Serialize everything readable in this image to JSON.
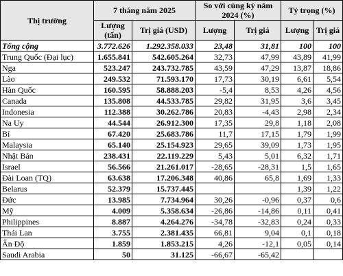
{
  "headers": {
    "market": "Thị trường",
    "period": "7 tháng năm 2025",
    "compare": "So với cùng kỳ năm 2024 (%)",
    "share": "Tỷ trọng (%)",
    "volume_unit": "Lượng (tấn)",
    "value_unit": "Trị giá (USD)",
    "volume": "Lượng",
    "value": "Trị giá"
  },
  "rows": [
    {
      "market": "Tổng cộng",
      "volume": "3.772.626",
      "value": "1.292.358.033",
      "vol_change": "23,48",
      "val_change": "31,81",
      "vol_share": "100",
      "val_share": "100"
    },
    {
      "market": "Trung Quốc (Đại lục)",
      "volume": "1.655.841",
      "value": "542.605.264",
      "vol_change": "32,73",
      "val_change": "47,99",
      "vol_share": "43,89",
      "val_share": "41,99"
    },
    {
      "market": "Nga",
      "volume": "523.247",
      "value": "243.732.785",
      "vol_change": "43,59",
      "val_change": "47,29",
      "vol_share": "13,87",
      "val_share": "18,86"
    },
    {
      "market": "Lào",
      "volume": "249.532",
      "value": "71.593.170",
      "vol_change": "17,73",
      "val_change": "30,19",
      "vol_share": "6,61",
      "val_share": "5,54"
    },
    {
      "market": "Hàn Quốc",
      "volume": "160.595",
      "value": "58.888.203",
      "vol_change": "-5,4",
      "val_change": "8,53",
      "vol_share": "4,26",
      "val_share": "4,56"
    },
    {
      "market": "Canada",
      "volume": "135.808",
      "value": "44.533.785",
      "vol_change": "29,82",
      "val_change": "31,95",
      "vol_share": "3,6",
      "val_share": "3,45"
    },
    {
      "market": "Indonesia",
      "volume": "112.388",
      "value": "30.262.786",
      "vol_change": "20,83",
      "val_change": "-4,43",
      "vol_share": "2,98",
      "val_share": "2,34"
    },
    {
      "market": "Na Uy",
      "volume": "44.544",
      "value": "26.912.300",
      "vol_change": "17,35",
      "val_change": "29,8",
      "vol_share": "1,18",
      "val_share": "2,08"
    },
    {
      "market": "Bỉ",
      "volume": "67.420",
      "value": "25.683.786",
      "vol_change": "11,7",
      "val_change": "17,15",
      "vol_share": "1,79",
      "val_share": "1,99"
    },
    {
      "market": "Malaysia",
      "volume": "65.140",
      "value": "25.154.923",
      "vol_change": "29,65",
      "val_change": "39,09",
      "vol_share": "1,73",
      "val_share": "1,95"
    },
    {
      "market": "Nhật Bản",
      "volume": "238.431",
      "value": "22.119.229",
      "vol_change": "5,43",
      "val_change": "5,01",
      "vol_share": "6,32",
      "val_share": "1,71"
    },
    {
      "market": "Israel",
      "volume": "56.566",
      "value": "21.261.017",
      "vol_change": "-28,65",
      "val_change": "-28,31",
      "vol_share": "1,5",
      "val_share": "1,65"
    },
    {
      "market": "Đài Loan (TQ)",
      "volume": "63.638",
      "value": "17.206.348",
      "vol_change": "40,86",
      "val_change": "65,8",
      "vol_share": "1,69",
      "val_share": "1,33"
    },
    {
      "market": "Belarus",
      "volume": "52.379",
      "value": "15.737.445",
      "vol_change": "",
      "val_change": "",
      "vol_share": "1,39",
      "val_share": "1,22"
    },
    {
      "market": "Đức",
      "volume": "13.985",
      "value": "7.734.964",
      "vol_change": "30,26",
      "val_change": "-0,96",
      "vol_share": "0,37",
      "val_share": "0,6"
    },
    {
      "market": "Mỹ",
      "volume": "4.009",
      "value": "5.358.634",
      "vol_change": "-26,86",
      "val_change": "-14,86",
      "vol_share": "0,11",
      "val_share": "0,41"
    },
    {
      "market": "Philippines",
      "volume": "8.887",
      "value": "4.264.276",
      "vol_change": "-34,78",
      "val_change": "-32,83",
      "vol_share": "0,24",
      "val_share": "0,33"
    },
    {
      "market": "Thái Lan",
      "volume": "3.755",
      "value": "2.381.435",
      "vol_change": "66,81",
      "val_change": "9,04",
      "vol_share": "0,1",
      "val_share": "0,18"
    },
    {
      "market": "Ấn Độ",
      "volume": "1.859",
      "value": "1.853.215",
      "vol_change": "4,26",
      "val_change": "-12,1",
      "vol_share": "0,05",
      "val_share": "0,14"
    },
    {
      "market": "Saudi Arabia",
      "volume": "50",
      "value": "31.125",
      "vol_change": "-66,67",
      "val_change": "-65,42",
      "vol_share": "",
      "val_share": ""
    }
  ]
}
